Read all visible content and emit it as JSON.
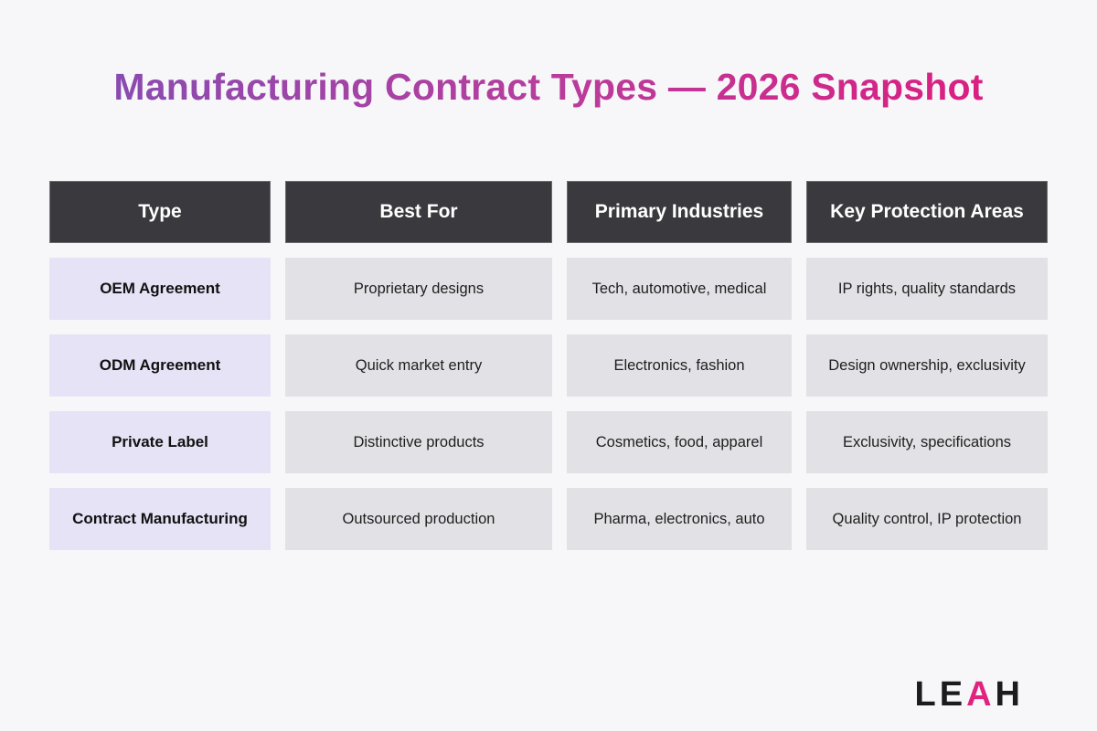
{
  "title": "Manufacturing Contract Types — 2026 Snapshot",
  "table": {
    "headers": [
      "Type",
      "Best For",
      "Primary Industries",
      "Key Protection Areas"
    ],
    "rows": [
      [
        "OEM Agreement",
        "Proprietary designs",
        "Tech, automotive, medical",
        "IP rights, quality standards"
      ],
      [
        "ODM Agreement",
        "Quick market entry",
        "Electronics, fashion",
        "Design ownership, exclusivity"
      ],
      [
        "Private Label",
        "Distinctive products",
        "Cosmetics, food, apparel",
        "Exclusivity, specifications"
      ],
      [
        "Contract Manufacturing",
        "Outsourced production",
        "Pharma, electronics, auto",
        "Quality control, IP protection"
      ]
    ]
  },
  "logo": {
    "prefix": "LE",
    "accent": "A",
    "suffix": "H",
    "accent_color": "#e0237f"
  },
  "colors": {
    "title_gradient_start": "#7d4fb6",
    "title_gradient_end": "#e3177a",
    "header_bg": "#3a3a3e",
    "type_cell_bg": "#e5e3f5",
    "body_cell_bg": "#e2e2e6",
    "page_bg": "#f7f7fa"
  }
}
